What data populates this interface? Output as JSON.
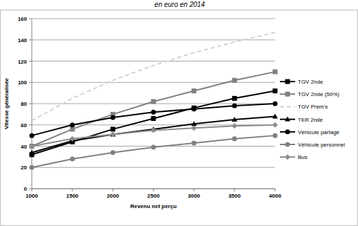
{
  "chart_data": {
    "type": "line",
    "title": "en euro en 2014",
    "x_label": "Revenu net perçu",
    "y_label": "Vitesse généralisée",
    "x": [
      1000,
      1500,
      2000,
      2500,
      3000,
      3500,
      4000
    ],
    "xlim": [
      1000,
      4000
    ],
    "xticks": [
      1000,
      1500,
      2000,
      2500,
      3000,
      3500,
      4000
    ],
    "ylim": [
      0,
      160
    ],
    "yticks": [
      0,
      20,
      40,
      60,
      80,
      100,
      120,
      140,
      160
    ],
    "grid": true,
    "legend": "right",
    "series": [
      {
        "name": "TGV 2nde",
        "color": "#000000",
        "marker": "square",
        "line_style": "solid",
        "values": [
          32,
          44,
          56,
          66,
          76,
          85,
          92
        ]
      },
      {
        "name": "TGV 2nde (50%)",
        "color": "#808080",
        "marker": "square",
        "line_style": "solid",
        "values": [
          40,
          56,
          70,
          82,
          92,
          102,
          110
        ]
      },
      {
        "name": "TGV Prem's",
        "color": "#d3d3d3",
        "marker": "square",
        "line_style": "dashed",
        "values": [
          64,
          85,
          102,
          116,
          128,
          138,
          147
        ]
      },
      {
        "name": "TER 2nde",
        "color": "#000000",
        "marker": "triangle",
        "line_style": "solid",
        "values": [
          34,
          45,
          51,
          56,
          61,
          65,
          68
        ]
      },
      {
        "name": "Véhicule partagé",
        "color": "#000000",
        "marker": "circle",
        "line_style": "solid",
        "values": [
          50,
          60,
          67,
          72,
          75,
          78,
          80
        ]
      },
      {
        "name": "Véhicule personnel",
        "color": "#808080",
        "marker": "circle",
        "line_style": "solid",
        "values": [
          20,
          28,
          34,
          39,
          43,
          47,
          50
        ]
      },
      {
        "name": "Bus",
        "color": "#8c8c8c",
        "marker": "diamond",
        "line_style": "solid",
        "values": [
          40,
          47,
          51,
          55,
          57,
          59,
          60
        ]
      }
    ]
  }
}
